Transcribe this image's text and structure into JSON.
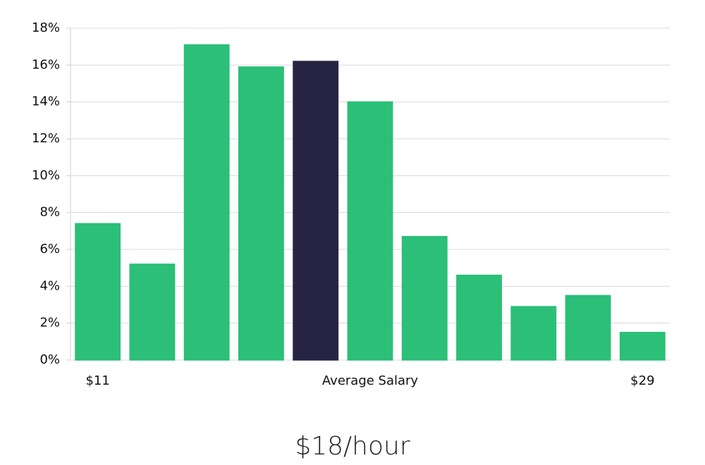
{
  "chart_data": {
    "type": "bar",
    "subtitle": "$18/hour",
    "categories": [
      "$11",
      null,
      null,
      null,
      null,
      "Average Salary",
      null,
      null,
      null,
      null,
      "$29"
    ],
    "values": [
      7.4,
      5.2,
      17.1,
      15.9,
      16.2,
      14.0,
      6.7,
      4.6,
      2.9,
      3.5,
      1.5
    ],
    "colors": [
      "#2bbf78",
      "#2bbf78",
      "#2bbf78",
      "#2bbf78",
      "#272443",
      "#2bbf78",
      "#2bbf78",
      "#2bbf78",
      "#2bbf78",
      "#2bbf78",
      "#2bbf78"
    ],
    "ylim": [
      0,
      18
    ],
    "yticks": [
      {
        "value": 0,
        "label": "0%"
      },
      {
        "value": 2,
        "label": "2%"
      },
      {
        "value": 4,
        "label": "4%"
      },
      {
        "value": 6,
        "label": "6%"
      },
      {
        "value": 8,
        "label": "8%"
      },
      {
        "value": 10,
        "label": "10%"
      },
      {
        "value": 12,
        "label": "12%"
      },
      {
        "value": 14,
        "label": "14%"
      },
      {
        "value": 16,
        "label": "16%"
      },
      {
        "value": 18,
        "label": "18%"
      }
    ],
    "grid": true
  }
}
